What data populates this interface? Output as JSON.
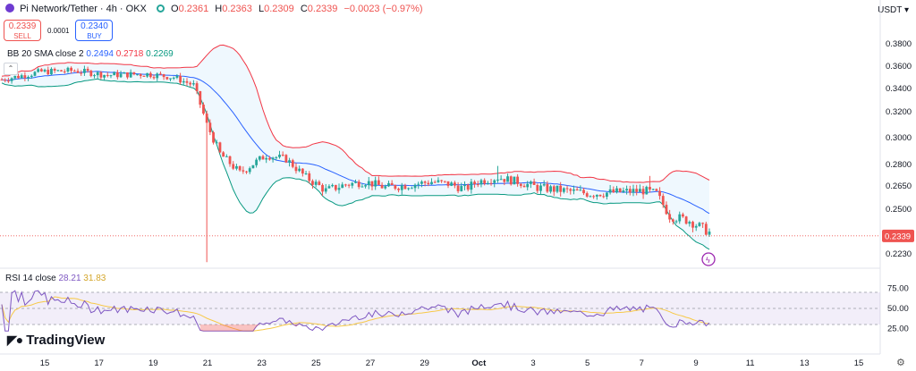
{
  "header": {
    "symbol": "Pi Network/Tether · 4h · OKX",
    "ohlc": [
      {
        "k": "O",
        "v": "0.2361"
      },
      {
        "k": "H",
        "v": "0.2363"
      },
      {
        "k": "L",
        "v": "0.2309"
      },
      {
        "k": "C",
        "v": "0.2339"
      }
    ],
    "change": "−0.0023 (−0.97%)",
    "currency": "USDT"
  },
  "trade": {
    "sell_price": "0.2339",
    "sell_label": "SELL",
    "spread": "0.0001",
    "buy_price": "0.2340",
    "buy_label": "BUY"
  },
  "bb_legend": {
    "name": "BB 20 SMA close 2",
    "basis": "0.2494",
    "upper": "0.2718",
    "lower": "0.2269"
  },
  "rsi_legend": {
    "name": "RSI 14 close",
    "rsi": "28.21",
    "ma": "31.83"
  },
  "brand": "TradingView",
  "colors": {
    "up": "#26a69a",
    "down": "#ef5350",
    "basis": "#2962ff",
    "upper": "#f23645",
    "lower": "#089981",
    "rsi": "#7e57c2",
    "rsi_ma": "#f7c948"
  },
  "chart_data": {
    "type": "candlestick",
    "ylim": [
      0.218,
      0.392
    ],
    "y_ticks": [
      "0.3800",
      "0.3600",
      "0.3400",
      "0.3200",
      "0.3000",
      "0.2800",
      "0.2650",
      "0.2500",
      "0.2230"
    ],
    "x_labels": [
      "15",
      "17",
      "19",
      "21",
      "23",
      "25",
      "27",
      "29",
      "Oct",
      "3",
      "5",
      "7",
      "9",
      "11",
      "13",
      "15"
    ],
    "last_price": "0.2339",
    "rsi_ticks": [
      "75.00",
      "50.00",
      "25.00"
    ],
    "rsi_bands": [
      30,
      70
    ],
    "rsi_ylim": [
      20,
      80
    ]
  }
}
